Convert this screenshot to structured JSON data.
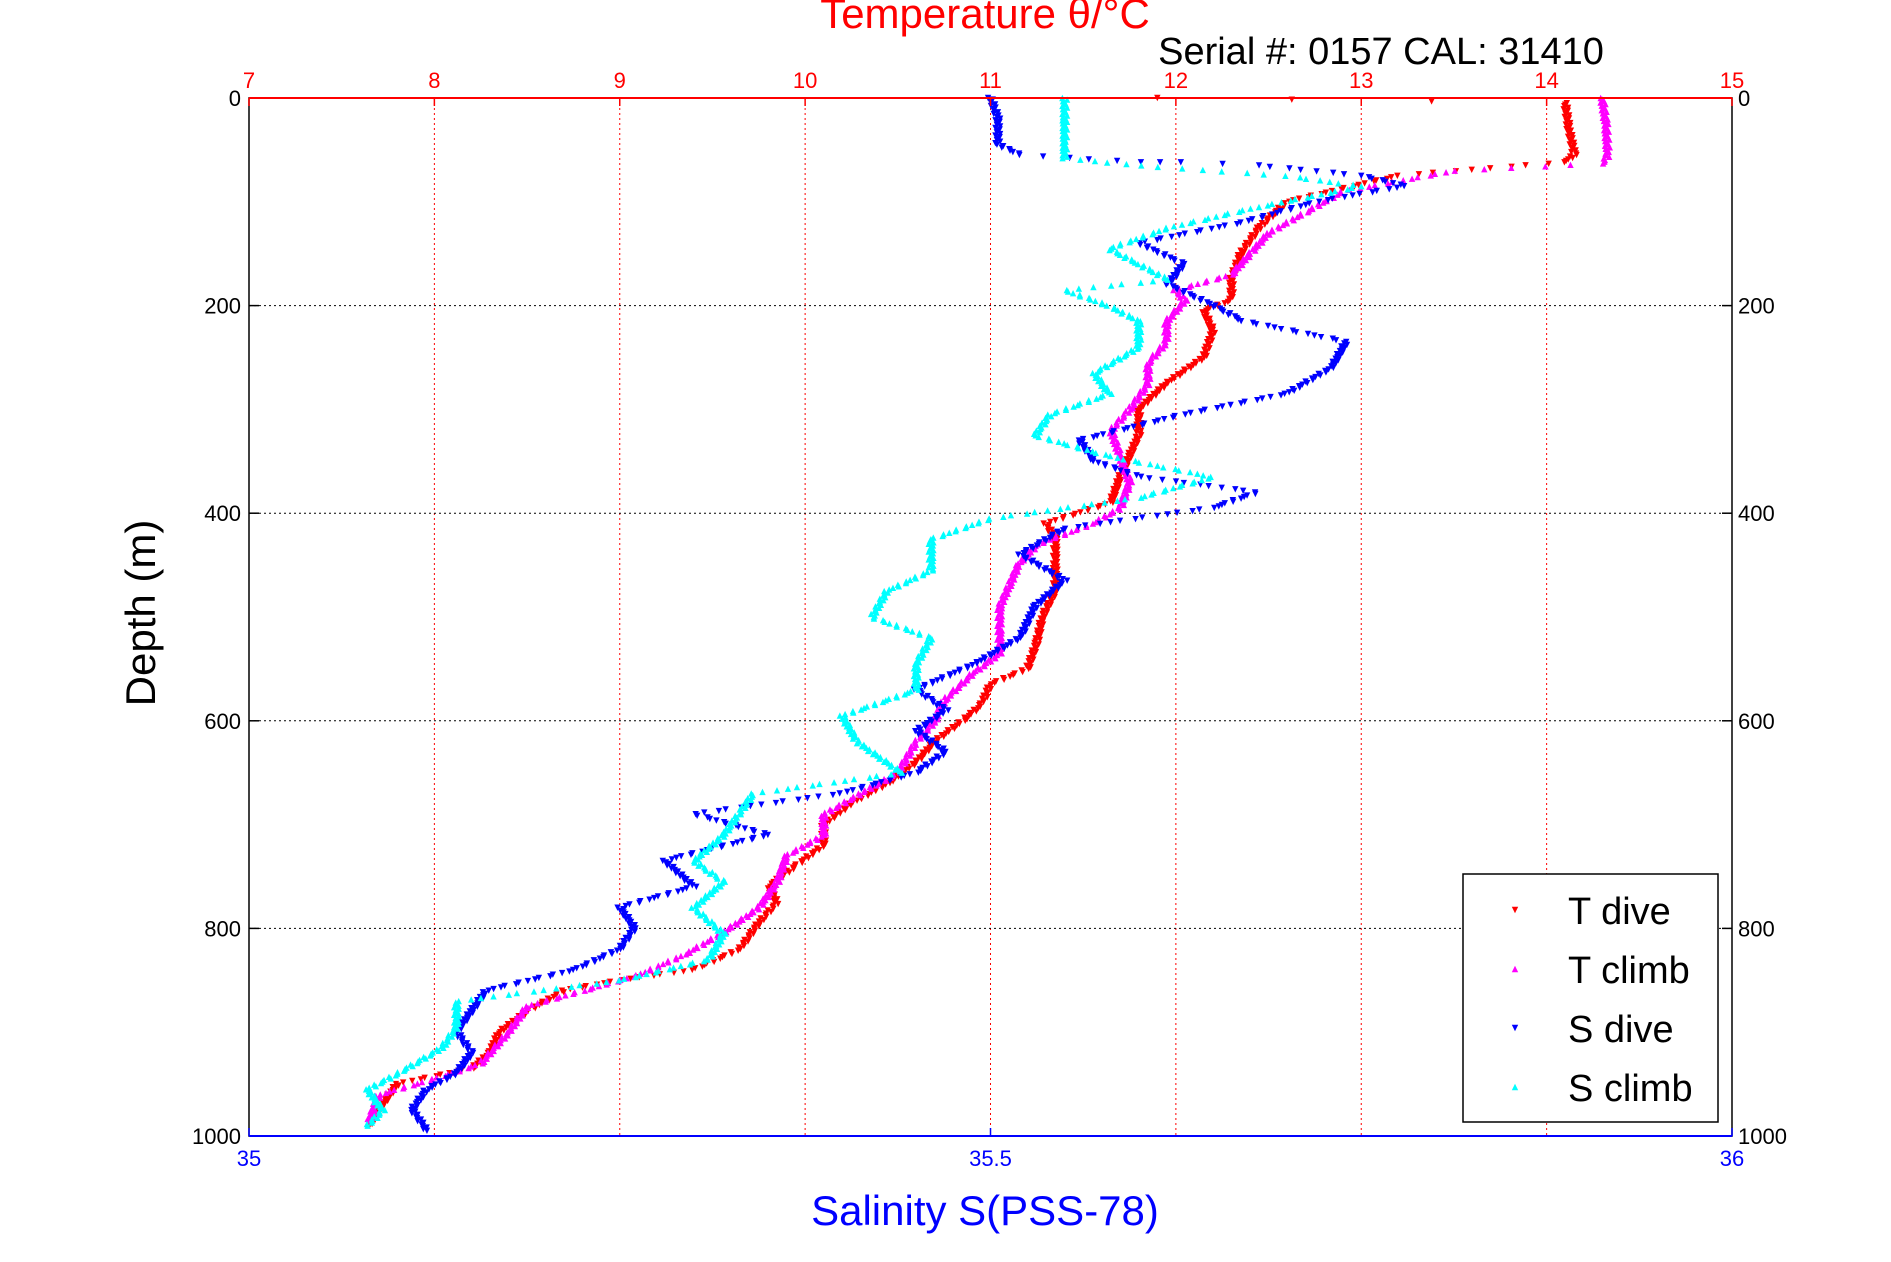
{
  "chart_data": {
    "type": "scatter",
    "title": "Temperature θ/°C",
    "annotation": "Serial #: 0157  CAL: 31410",
    "ylabel": "Depth (m)",
    "xlabel": "Salinity S(PSS-78)",
    "top_axis": {
      "label": "Temperature θ/°C",
      "range": [
        7,
        15
      ],
      "ticks": [
        "7",
        "8",
        "9",
        "10",
        "11",
        "12",
        "13",
        "14",
        "15"
      ],
      "color": "#ff0000"
    },
    "bottom_axis": {
      "label": "Salinity S(PSS-78)",
      "range": [
        35,
        36
      ],
      "ticks": [
        "35",
        "35.5",
        "36"
      ],
      "color": "#0000ff"
    },
    "y_axis": {
      "range": [
        0,
        1000
      ],
      "reversed": true,
      "ticks": [
        "0",
        "200",
        "400",
        "600",
        "800",
        "1000"
      ],
      "label_sides": "left-and-right"
    },
    "grid": "dotted; vertical lines at temperature ticks (red), horizontal lines at depth ticks",
    "legend_position": "bottom-right",
    "series": [
      {
        "name": "T dive",
        "axis": "temperature",
        "color": "#ff0000",
        "marker": "triangle-down",
        "points": [
          [
            11.9,
            0
          ],
          [
            14.1,
            5
          ],
          [
            14.12,
            30
          ],
          [
            14.15,
            55
          ],
          [
            14.1,
            62
          ],
          [
            13.2,
            75
          ],
          [
            12.6,
            100
          ],
          [
            12.45,
            125
          ],
          [
            12.35,
            150
          ],
          [
            12.3,
            175
          ],
          [
            12.3,
            195
          ],
          [
            12.15,
            205
          ],
          [
            12.2,
            225
          ],
          [
            12.15,
            250
          ],
          [
            11.95,
            275
          ],
          [
            11.8,
            300
          ],
          [
            11.8,
            325
          ],
          [
            11.75,
            345
          ],
          [
            11.7,
            365
          ],
          [
            11.65,
            390
          ],
          [
            11.3,
            410
          ],
          [
            11.35,
            425
          ],
          [
            11.35,
            450
          ],
          [
            11.35,
            475
          ],
          [
            11.28,
            500
          ],
          [
            11.25,
            525
          ],
          [
            11.2,
            550
          ],
          [
            11.0,
            565
          ],
          [
            10.95,
            585
          ],
          [
            10.85,
            600
          ],
          [
            10.7,
            620
          ],
          [
            10.6,
            640
          ],
          [
            10.45,
            660
          ],
          [
            10.25,
            680
          ],
          [
            10.1,
            700
          ],
          [
            10.1,
            720
          ],
          [
            9.95,
            740
          ],
          [
            9.8,
            760
          ],
          [
            9.85,
            775
          ],
          [
            9.75,
            795
          ],
          [
            9.65,
            820
          ],
          [
            9.4,
            840
          ],
          [
            9.0,
            850
          ],
          [
            8.7,
            860
          ],
          [
            8.5,
            880
          ],
          [
            8.35,
            900
          ],
          [
            8.3,
            920
          ],
          [
            8.2,
            935
          ],
          [
            7.8,
            950
          ],
          [
            7.7,
            975
          ],
          [
            7.65,
            990
          ]
        ]
      },
      {
        "name": "T climb",
        "axis": "temperature",
        "color": "#ff00ff",
        "marker": "triangle-up",
        "points": [
          [
            14.3,
            0
          ],
          [
            14.32,
            25
          ],
          [
            14.33,
            55
          ],
          [
            14.3,
            63
          ],
          [
            13.5,
            70
          ],
          [
            12.9,
            90
          ],
          [
            12.7,
            110
          ],
          [
            12.5,
            130
          ],
          [
            12.4,
            150
          ],
          [
            12.3,
            170
          ],
          [
            12.0,
            185
          ],
          [
            12.05,
            195
          ],
          [
            11.95,
            215
          ],
          [
            11.95,
            235
          ],
          [
            11.85,
            255
          ],
          [
            11.85,
            275
          ],
          [
            11.75,
            300
          ],
          [
            11.65,
            320
          ],
          [
            11.7,
            345
          ],
          [
            11.75,
            370
          ],
          [
            11.7,
            395
          ],
          [
            11.55,
            410
          ],
          [
            11.25,
            430
          ],
          [
            11.15,
            450
          ],
          [
            11.1,
            470
          ],
          [
            11.05,
            490
          ],
          [
            11.05,
            510
          ],
          [
            11.05,
            535
          ],
          [
            10.9,
            555
          ],
          [
            10.75,
            580
          ],
          [
            10.7,
            600
          ],
          [
            10.6,
            620
          ],
          [
            10.5,
            650
          ],
          [
            10.3,
            670
          ],
          [
            10.1,
            690
          ],
          [
            10.1,
            710
          ],
          [
            9.9,
            730
          ],
          [
            9.85,
            755
          ],
          [
            9.75,
            780
          ],
          [
            9.55,
            805
          ],
          [
            9.35,
            825
          ],
          [
            9.1,
            845
          ],
          [
            8.8,
            860
          ],
          [
            8.5,
            875
          ],
          [
            8.4,
            900
          ],
          [
            8.25,
            930
          ],
          [
            8.0,
            945
          ],
          [
            7.7,
            960
          ],
          [
            7.65,
            985
          ]
        ]
      },
      {
        "name": "S dive",
        "axis": "salinity",
        "color": "#0000ff",
        "marker": "triangle-down",
        "points": [
          [
            35.5,
            0
          ],
          [
            35.505,
            20
          ],
          [
            35.505,
            45
          ],
          [
            35.52,
            55
          ],
          [
            35.6,
            62
          ],
          [
            35.63,
            62
          ],
          [
            35.68,
            65
          ],
          [
            35.75,
            75
          ],
          [
            35.78,
            85
          ],
          [
            35.72,
            100
          ],
          [
            35.67,
            120
          ],
          [
            35.6,
            140
          ],
          [
            35.63,
            160
          ],
          [
            35.62,
            180
          ],
          [
            35.65,
            200
          ],
          [
            35.67,
            215
          ],
          [
            35.74,
            235
          ],
          [
            35.73,
            260
          ],
          [
            35.7,
            285
          ],
          [
            35.63,
            305
          ],
          [
            35.56,
            330
          ],
          [
            35.57,
            350
          ],
          [
            35.6,
            365
          ],
          [
            35.68,
            380
          ],
          [
            35.65,
            395
          ],
          [
            35.55,
            415
          ],
          [
            35.52,
            440
          ],
          [
            35.55,
            465
          ],
          [
            35.53,
            490
          ],
          [
            35.52,
            520
          ],
          [
            35.49,
            545
          ],
          [
            35.45,
            570
          ],
          [
            35.47,
            590
          ],
          [
            35.45,
            610
          ],
          [
            35.47,
            630
          ],
          [
            35.45,
            650
          ],
          [
            35.4,
            670
          ],
          [
            35.3,
            690
          ],
          [
            35.35,
            710
          ],
          [
            35.28,
            735
          ],
          [
            35.3,
            760
          ],
          [
            35.25,
            780
          ],
          [
            35.26,
            800
          ],
          [
            35.25,
            820
          ],
          [
            35.22,
            840
          ],
          [
            35.16,
            860
          ],
          [
            35.15,
            880
          ],
          [
            35.14,
            900
          ],
          [
            35.15,
            920
          ],
          [
            35.14,
            940
          ],
          [
            35.12,
            955
          ],
          [
            35.11,
            975
          ],
          [
            35.12,
            995
          ]
        ]
      },
      {
        "name": "S climb",
        "axis": "salinity",
        "color": "#00ffff",
        "marker": "triangle-up",
        "points": [
          [
            35.55,
            0
          ],
          [
            35.55,
            20
          ],
          [
            35.55,
            45
          ],
          [
            35.55,
            58
          ],
          [
            35.6,
            65
          ],
          [
            35.7,
            75
          ],
          [
            35.75,
            85
          ],
          [
            35.68,
            105
          ],
          [
            35.62,
            125
          ],
          [
            35.58,
            145
          ],
          [
            35.6,
            160
          ],
          [
            35.62,
            175
          ],
          [
            35.55,
            185
          ],
          [
            35.58,
            200
          ],
          [
            35.6,
            215
          ],
          [
            35.6,
            240
          ],
          [
            35.57,
            265
          ],
          [
            35.58,
            285
          ],
          [
            35.54,
            305
          ],
          [
            35.53,
            325
          ],
          [
            35.58,
            345
          ],
          [
            35.65,
            365
          ],
          [
            35.6,
            385
          ],
          [
            35.5,
            405
          ],
          [
            35.46,
            425
          ],
          [
            35.46,
            455
          ],
          [
            35.43,
            475
          ],
          [
            35.42,
            500
          ],
          [
            35.46,
            520
          ],
          [
            35.45,
            545
          ],
          [
            35.45,
            570
          ],
          [
            35.4,
            595
          ],
          [
            35.41,
            620
          ],
          [
            35.44,
            650
          ],
          [
            35.34,
            670
          ],
          [
            35.33,
            690
          ],
          [
            35.32,
            710
          ],
          [
            35.3,
            735
          ],
          [
            35.32,
            755
          ],
          [
            35.3,
            780
          ],
          [
            35.32,
            805
          ],
          [
            35.31,
            830
          ],
          [
            35.25,
            850
          ],
          [
            35.14,
            870
          ],
          [
            35.14,
            895
          ],
          [
            35.13,
            915
          ],
          [
            35.1,
            940
          ],
          [
            35.08,
            955
          ],
          [
            35.09,
            975
          ],
          [
            35.08,
            990
          ]
        ]
      }
    ]
  }
}
